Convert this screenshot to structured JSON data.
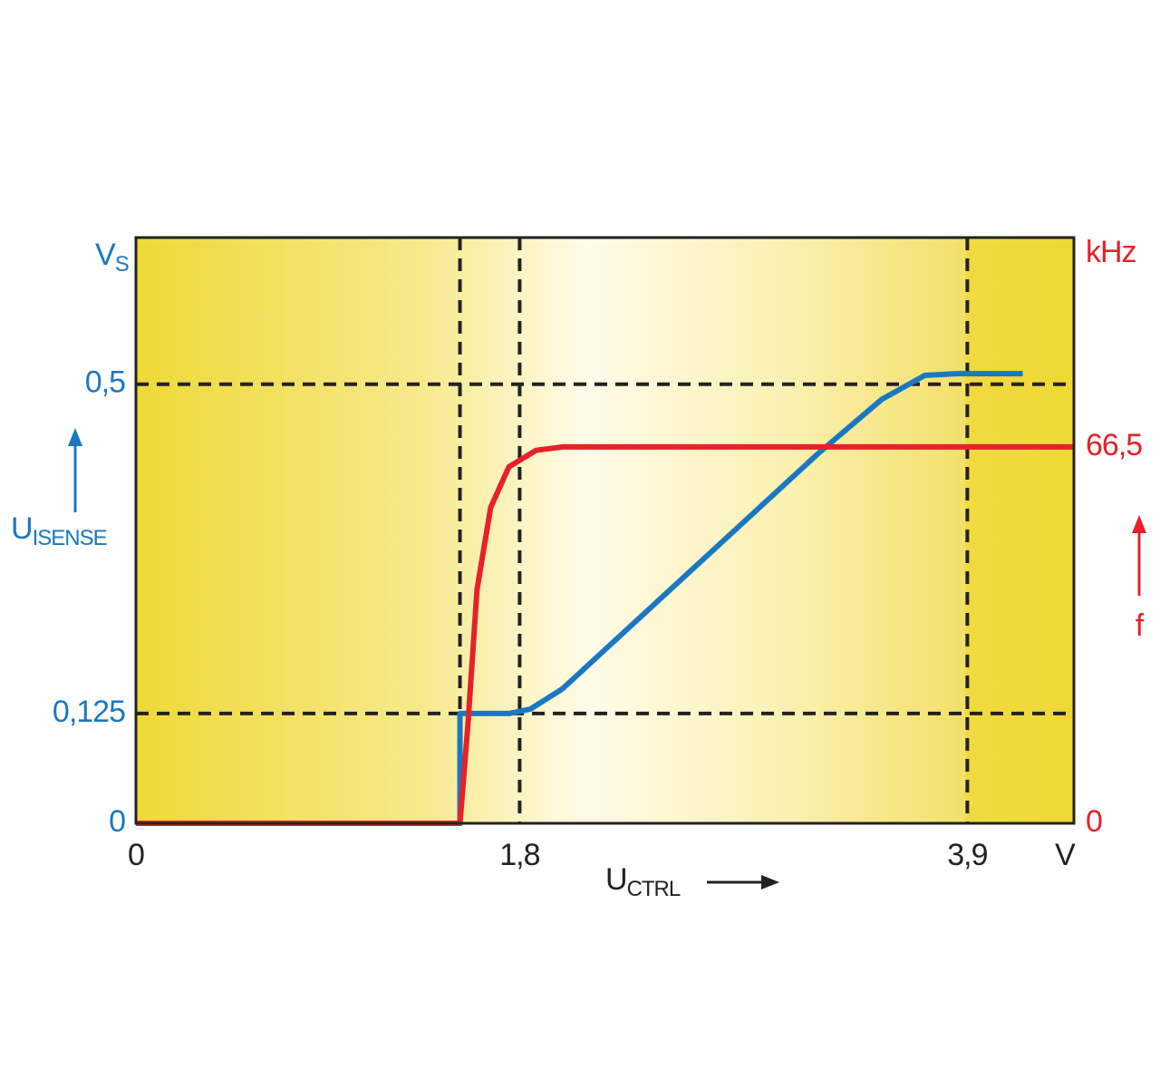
{
  "chart_data": {
    "type": "line",
    "x_label": "U",
    "x_label_sub": "CTRL",
    "x_unit": "V",
    "y_label": "U",
    "y_label_sub": "ISENSE",
    "y_unit": "V",
    "y_unit_sub": "S",
    "y2_label": "f",
    "y2_unit": "kHz",
    "xlim": [
      0,
      4.4
    ],
    "xticks": [
      0,
      {
        "value": 1.8,
        "label": "1,8"
      },
      {
        "value": 3.9,
        "label": "3,9"
      }
    ],
    "x_guides": [
      1.52
    ],
    "ylim": [
      0,
      0.667
    ],
    "yticks": [
      0,
      {
        "value": 0.125,
        "label": "0,125"
      },
      {
        "value": 0.5,
        "label": "0,5"
      }
    ],
    "y2lim": [
      0,
      103.5
    ],
    "y2ticks": [
      0,
      {
        "value": 66.5,
        "label": "66,5"
      }
    ],
    "grid": true,
    "series": [
      {
        "color": "#1a78c2",
        "x": [
          0,
          1.52,
          1.52,
          1.75,
          1.85,
          2.0,
          3.2,
          3.5,
          3.7,
          3.85,
          4.16
        ],
        "values": [
          0,
          0,
          0.125,
          0.125,
          0.13,
          0.153,
          0.421,
          0.483,
          0.51,
          0.512,
          0.512
        ]
      },
      {
        "color": "#e8202a",
        "axis": "y2",
        "x": [
          0,
          1.52,
          1.557,
          1.6,
          1.664,
          1.75,
          1.877,
          2.0,
          4.4
        ],
        "values": [
          0,
          0,
          17.3,
          41.3,
          55.8,
          63,
          65.9,
          66.5,
          66.5
        ]
      }
    ]
  }
}
